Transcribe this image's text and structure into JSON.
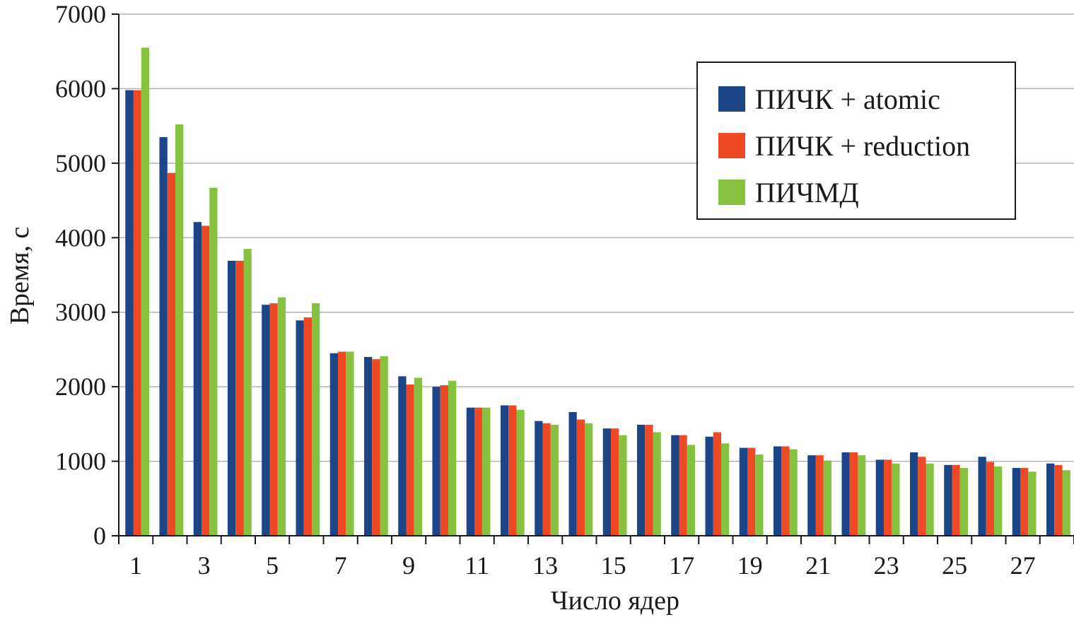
{
  "chart_data": {
    "type": "bar",
    "title": "",
    "xlabel": "Число ядер",
    "ylabel": "Время, с",
    "ylim": [
      0,
      7000
    ],
    "yticks": [
      0,
      1000,
      2000,
      3000,
      4000,
      5000,
      6000,
      7000
    ],
    "grid": true,
    "legend_position": "top-right",
    "categories": [
      1,
      2,
      3,
      4,
      5,
      6,
      7,
      8,
      9,
      10,
      11,
      12,
      13,
      14,
      15,
      16,
      17,
      18,
      19,
      20,
      21,
      22,
      23,
      24,
      25,
      26,
      27,
      28
    ],
    "tick_labels": [
      "1",
      "3",
      "5",
      "7",
      "9",
      "11",
      "13",
      "15",
      "17",
      "19",
      "21",
      "23",
      "25",
      "27"
    ],
    "series": [
      {
        "name": "ПИЧК + atomic",
        "color": "#1b4587",
        "values": [
          5980,
          5350,
          4210,
          3690,
          3100,
          2890,
          2450,
          2400,
          2140,
          2000,
          1720,
          1750,
          1540,
          1660,
          1440,
          1490,
          1350,
          1330,
          1180,
          1200,
          1080,
          1120,
          1020,
          1120,
          950,
          1060,
          910,
          970
        ]
      },
      {
        "name": "ПИЧК + reduction",
        "color": "#ef4a26",
        "values": [
          5980,
          4870,
          4160,
          3690,
          3120,
          2930,
          2470,
          2370,
          2030,
          2020,
          1720,
          1750,
          1510,
          1560,
          1440,
          1490,
          1350,
          1390,
          1180,
          1200,
          1080,
          1120,
          1020,
          1060,
          950,
          990,
          910,
          950
        ]
      },
      {
        "name": "ПИЧМД",
        "color": "#86c140",
        "values": [
          6550,
          5520,
          4670,
          3850,
          3200,
          3120,
          2470,
          2410,
          2120,
          2080,
          1720,
          1690,
          1490,
          1510,
          1350,
          1390,
          1220,
          1240,
          1090,
          1160,
          1010,
          1080,
          970,
          970,
          910,
          930,
          860,
          880
        ]
      }
    ]
  }
}
